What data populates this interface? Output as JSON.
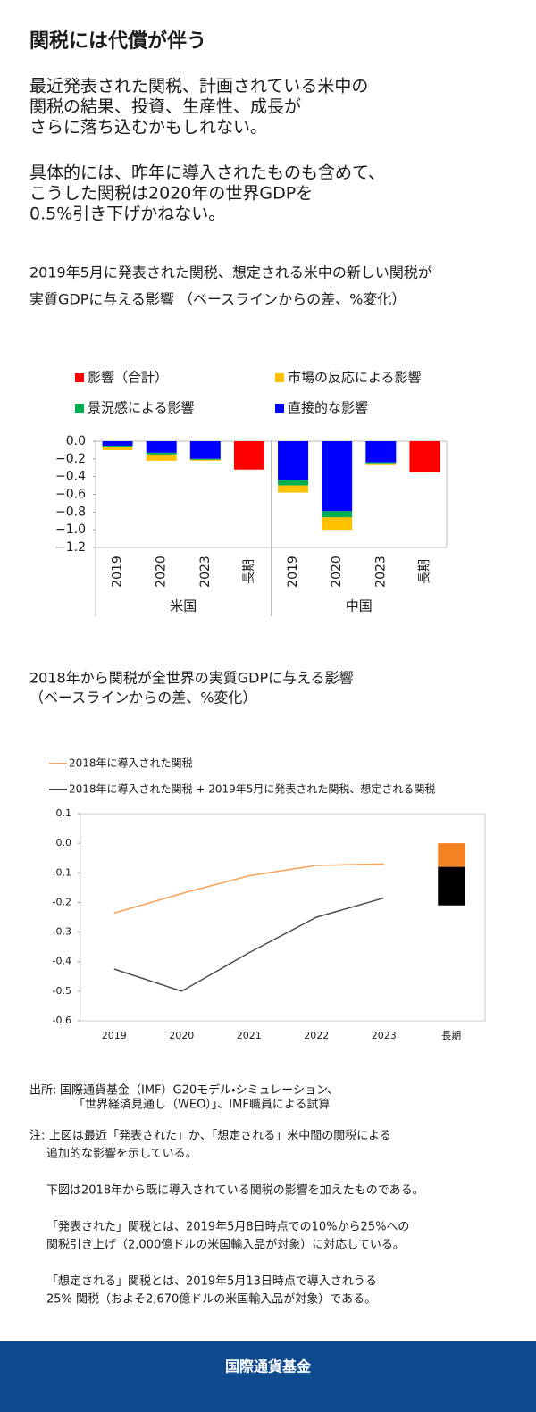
{
  "title": "関税には代償が伴う",
  "intro": [
    "最近発表された関税、計画されている米中の",
    "関税の結果、投資、生産性、成長が",
    "さらに落ち込むかもしれない。"
  ],
  "detail": [
    "具体的には、昨年に導入されたものも含めて、",
    "こうした関税は2020年の世界GDPを",
    "0.5%引き下げかねない。"
  ],
  "chart_data": [
    {
      "type": "stacked_bar",
      "title": [
        "2019年5月に発表された関税、想定される米中の新しい関税が",
        "実質GDPに与える影響 （ベースラインからの差、%変化）"
      ],
      "categories": [
        "2019",
        "2020",
        "2023",
        "長期",
        "2019",
        "2020",
        "2023",
        "長期"
      ],
      "groups": [
        "米国",
        "中国"
      ],
      "series": [
        {
          "name": "影響（合計）",
          "color": "#ff0000",
          "values": [
            null,
            null,
            null,
            -0.32,
            null,
            null,
            null,
            -0.35
          ]
        },
        {
          "name": "市場の反応による影響",
          "color": "#ffc000",
          "values": [
            -0.03,
            -0.07,
            -0.01,
            null,
            -0.08,
            -0.14,
            -0.02,
            null
          ]
        },
        {
          "name": "景況感による影響",
          "color": "#00b050",
          "values": [
            -0.02,
            -0.02,
            -0.01,
            null,
            -0.06,
            -0.07,
            -0.01,
            null
          ]
        },
        {
          "name": "直接的な影響",
          "color": "#0000ff",
          "values": [
            -0.05,
            -0.13,
            -0.2,
            null,
            -0.44,
            -0.79,
            -0.24,
            null
          ]
        }
      ],
      "ylim": [
        -1.2,
        0
      ],
      "yticks": [
        {
          "value": 0,
          "label": "0.0"
        },
        {
          "value": -0.2,
          "label": "−0.2"
        },
        {
          "value": -0.4,
          "label": "−0.4"
        },
        {
          "value": -0.6,
          "label": "−0.6"
        },
        {
          "value": -0.8,
          "label": "−0.8"
        },
        {
          "value": -1.0,
          "label": "−1.0"
        },
        {
          "value": -1.2,
          "label": "−1.2"
        }
      ]
    },
    {
      "type": "line",
      "title": [
        "2018年から関税が全世界の実質GDPに与える影響",
        "（ベースラインからの差、%変化）"
      ],
      "categories": [
        "2019",
        "2020",
        "2021",
        "2022",
        "2023",
        "長期"
      ],
      "series": [
        {
          "name": "2018年に導入された関税",
          "color": "#f58220",
          "values": [
            -0.236,
            -0.17,
            -0.11,
            -0.075,
            -0.07,
            null
          ],
          "bar_values": [
            null,
            null,
            null,
            null,
            null,
            -0.08
          ]
        },
        {
          "name": "2018年に導入された関税 + 2019年5月に発表された関税、想定される関税",
          "color": "#000000",
          "values": [
            -0.425,
            -0.5,
            -0.37,
            -0.25,
            -0.185,
            null
          ],
          "bar_values": [
            null,
            null,
            null,
            null,
            null,
            -0.13
          ]
        }
      ],
      "ylim": [
        -0.6,
        0.1
      ],
      "yticks": [
        0.1,
        {
          "value": 0,
          "label": "0.0"
        },
        -0.1,
        -0.2,
        -0.3,
        -0.4,
        -0.5,
        -0.6
      ]
    }
  ],
  "sources": {
    "label": "出所:",
    "lines": [
      "国際通貨基金（IMF）G20モデル・シミュレーション、",
      "「世界経済見通し（WEO）」、IMF職員による試算"
    ]
  },
  "notes": {
    "label": "注:",
    "paragraphs": [
      [
        "上図は最近「発表された」か、「想定される」米中間の関税による",
        "追加的な影響を示している。"
      ],
      [
        "下図は2018年から既に導入されている関税の影響を加えたものである。"
      ],
      [
        "「発表された」関税とは、2019年5月8日時点での10%から25%への",
        "関税引き上げ（2,000億ドルの米国輸入品が対象）に対応している。"
      ],
      [
        "「想定される」関税とは、2019年5月13日時点で導入されうる",
        "25% 関税（およそ2,670億ドルの米国輸入品が対象）である。"
      ]
    ]
  },
  "footer": "国際通貨基金"
}
